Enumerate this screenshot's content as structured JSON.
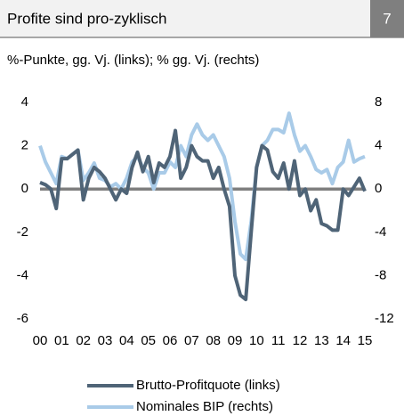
{
  "chart_data": {
    "type": "line",
    "title": "Profite sind pro-zyklisch",
    "number": "7",
    "subtitle": "%-Punkte, gg. Vj. (links); % gg. Vj. (rechts)",
    "x": [
      2000,
      2000.25,
      2000.5,
      2000.75,
      2001,
      2001.25,
      2001.5,
      2001.75,
      2002,
      2002.25,
      2002.5,
      2002.75,
      2003,
      2003.25,
      2003.5,
      2003.75,
      2004,
      2004.25,
      2004.5,
      2004.75,
      2005,
      2005.25,
      2005.5,
      2005.75,
      2006,
      2006.25,
      2006.5,
      2006.75,
      2007,
      2007.25,
      2007.5,
      2007.75,
      2008,
      2008.25,
      2008.5,
      2008.75,
      2009,
      2009.25,
      2009.5,
      2009.75,
      2010,
      2010.25,
      2010.5,
      2010.75,
      2011,
      2011.25,
      2011.5,
      2011.75,
      2012,
      2012.25,
      2012.5,
      2012.75,
      2013,
      2013.25,
      2013.5,
      2013.75,
      2014,
      2014.25,
      2014.5,
      2014.75,
      2015
    ],
    "series": [
      {
        "name": "Brutto-Profitquote (links)",
        "color": "#4f6477",
        "axis": "y",
        "values": [
          0.3,
          0.2,
          0.0,
          -0.9,
          1.4,
          1.4,
          1.6,
          1.8,
          -0.5,
          0.5,
          1.0,
          0.8,
          0.5,
          0.0,
          -0.5,
          0.0,
          -0.2,
          1.0,
          1.7,
          0.8,
          1.5,
          0.3,
          1.2,
          1.0,
          1.5,
          2.7,
          0.5,
          1.0,
          2.0,
          1.5,
          1.3,
          1.3,
          0.5,
          1.0,
          0.0,
          -0.8,
          -4.0,
          -4.9,
          -5.1,
          -2.0,
          1.0,
          2.0,
          1.8,
          0.8,
          0.5,
          1.2,
          0.0,
          1.3,
          -0.3,
          0.0,
          -1.0,
          -0.5,
          -1.6,
          -1.7,
          -1.9,
          -1.9,
          0.0,
          -0.3,
          0.1,
          0.5,
          -0.1
        ]
      },
      {
        "name": "Nominales BIP (rechts)",
        "color": "#a9cbe8",
        "axis": "y2",
        "values": [
          4.0,
          2.5,
          1.5,
          0.5,
          3.0,
          2.8,
          3.2,
          3.6,
          0.8,
          1.5,
          2.4,
          1.0,
          0.8,
          0.2,
          0.5,
          0.0,
          1.0,
          2.5,
          3.0,
          2.0,
          1.5,
          0.0,
          1.5,
          1.5,
          2.5,
          2.0,
          4.0,
          3.0,
          5.0,
          6.0,
          5.0,
          4.5,
          5.0,
          4.0,
          3.0,
          1.0,
          -3.0,
          -6.0,
          -6.5,
          -3.0,
          2.0,
          4.0,
          4.5,
          5.5,
          5.5,
          5.2,
          7.0,
          5.0,
          3.5,
          4.0,
          3.0,
          1.8,
          1.5,
          1.8,
          0.5,
          2.0,
          2.5,
          4.5,
          2.5,
          2.8,
          3.0
        ]
      }
    ],
    "xlim": [
      2000,
      2015
    ],
    "xticks": [
      {
        "value": 2000,
        "label": "00"
      },
      {
        "value": 2001,
        "label": "01"
      },
      {
        "value": 2002,
        "label": "02"
      },
      {
        "value": 2003,
        "label": "03"
      },
      {
        "value": 2004,
        "label": "04"
      },
      {
        "value": 2005,
        "label": "05"
      },
      {
        "value": 2006,
        "label": "06"
      },
      {
        "value": 2007,
        "label": "07"
      },
      {
        "value": 2008,
        "label": "08"
      },
      {
        "value": 2009,
        "label": "09"
      },
      {
        "value": 2010,
        "label": "10"
      },
      {
        "value": 2011,
        "label": "11"
      },
      {
        "value": 2012,
        "label": "12"
      },
      {
        "value": 2013,
        "label": "13"
      },
      {
        "value": 2014,
        "label": "14"
      },
      {
        "value": 2015,
        "label": "15"
      }
    ],
    "ylim": [
      -6,
      4
    ],
    "yticks": [
      -6,
      -4,
      -2,
      0,
      2,
      4
    ],
    "y2lim": [
      -12,
      8
    ],
    "y2ticks": [
      -12,
      -8,
      -4,
      0,
      4,
      8
    ],
    "zero_line_color": "#7f7f7f",
    "grid": false
  }
}
